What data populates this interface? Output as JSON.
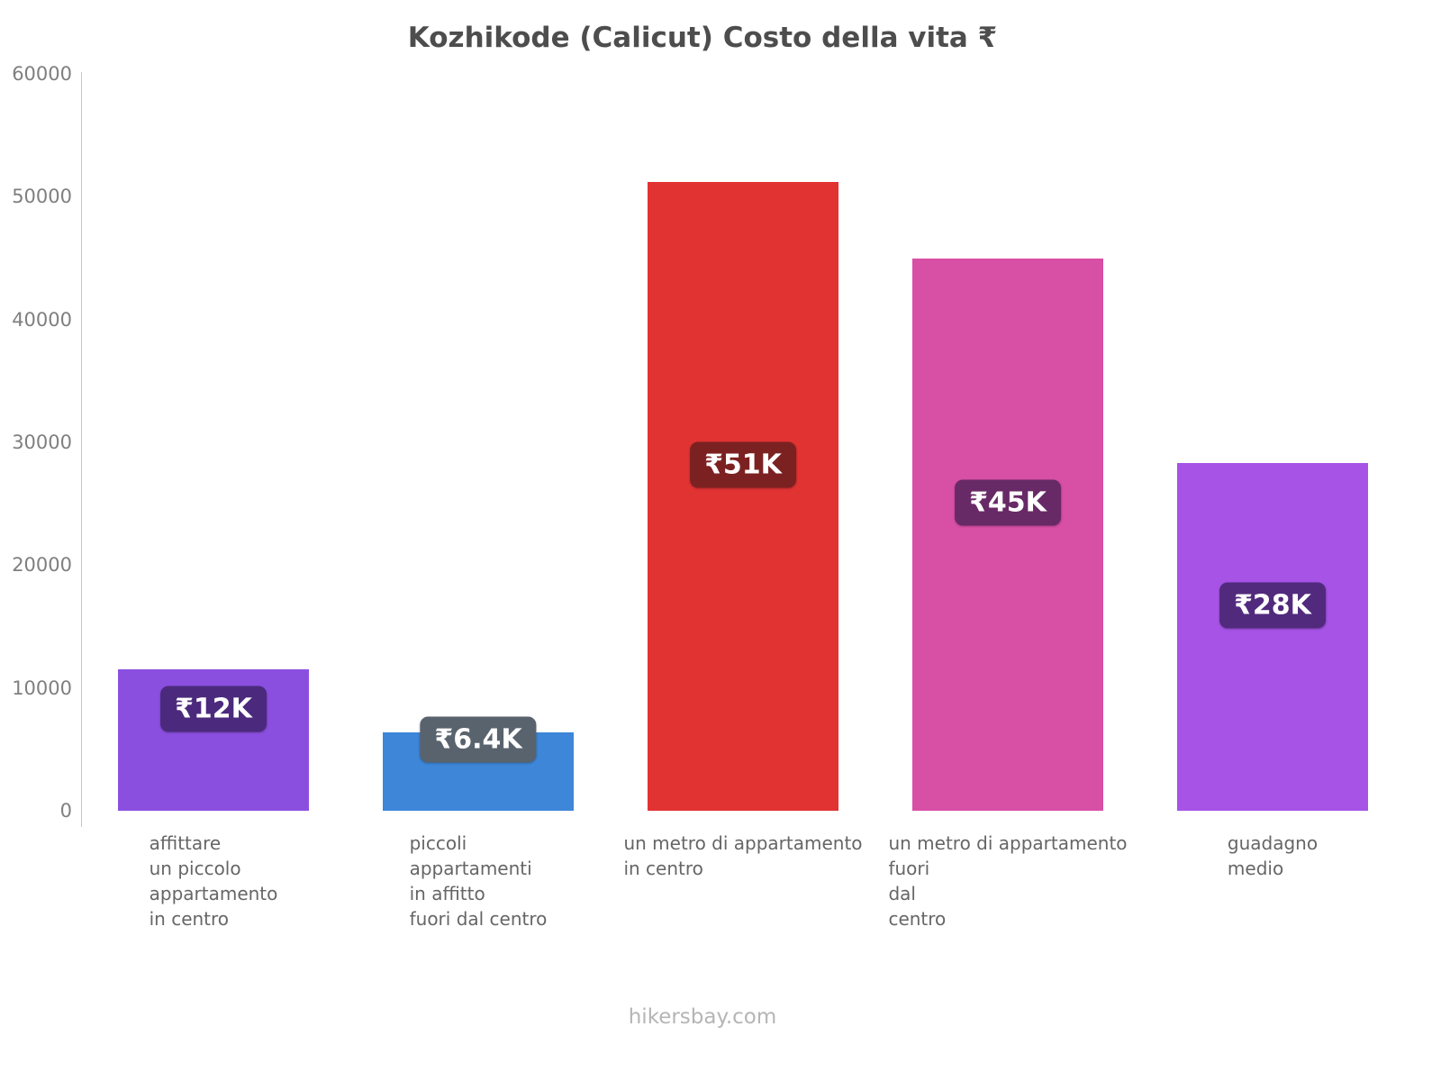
{
  "chart": {
    "title": "Kozhikode (Calicut) Costo della vita ₹",
    "footer": "hikersbay.com"
  },
  "chart_data": {
    "type": "bar",
    "title": "Kozhikode (Calicut) Costo della vita ₹",
    "xlabel": "",
    "ylabel": "",
    "ylim": [
      0,
      60000
    ],
    "yticks": [
      0,
      10000,
      20000,
      30000,
      40000,
      50000,
      60000
    ],
    "grid": false,
    "legend": false,
    "categories": [
      "affittare un piccolo appartamento in centro",
      "piccoli appartamenti in affitto fuori dal centro",
      "un metro di appartamento in centro",
      "un metro di appartamento fuori dal centro",
      "guadagno medio"
    ],
    "bars": [
      {
        "category_lines": [
          "affittare",
          "un piccolo",
          "appartamento",
          "in centro"
        ],
        "value": 11500,
        "label": "₹12K",
        "color": "#8b4fe0",
        "label_bg": "#4b2a7d"
      },
      {
        "category_lines": [
          "piccoli",
          "appartamenti",
          "in affitto",
          "fuori dal centro"
        ],
        "value": 6400,
        "label": "₹6.4K",
        "color": "#3d86d8",
        "label_bg": "#59636e"
      },
      {
        "category_lines": [
          "un metro di appartamento",
          "in centro"
        ],
        "value": 51200,
        "label": "₹51K",
        "color": "#e23333",
        "label_bg": "#7c2121"
      },
      {
        "category_lines": [
          "un metro di appartamento",
          "fuori",
          "dal",
          "centro"
        ],
        "value": 45000,
        "label": "₹45K",
        "color": "#d84fa6",
        "label_bg": "#682a66"
      },
      {
        "category_lines": [
          "guadagno",
          "medio"
        ],
        "value": 28300,
        "label": "₹28K",
        "color": "#a653e6",
        "label_bg": "#512a7d"
      }
    ]
  }
}
